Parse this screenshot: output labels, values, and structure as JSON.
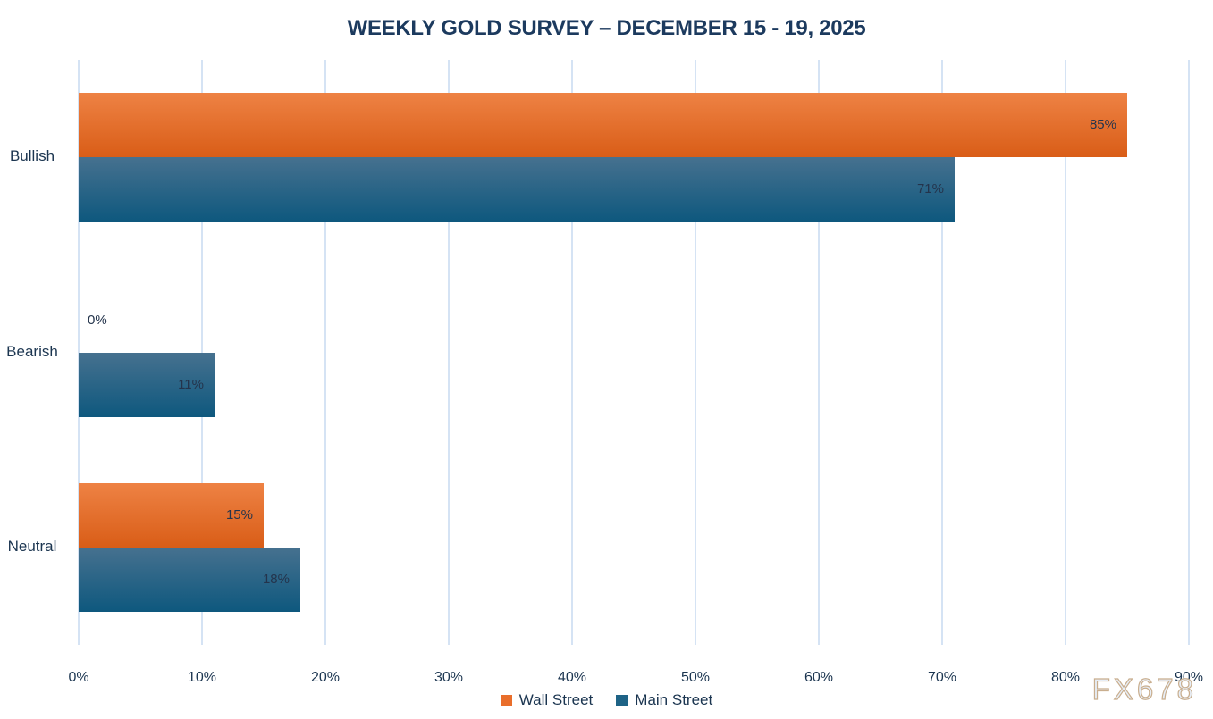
{
  "watermark": "FX678",
  "chart_data": {
    "type": "bar",
    "orientation": "horizontal",
    "title": "WEEKLY GOLD SURVEY – DECEMBER 15 - 19, 2025",
    "categories": [
      "Bullish",
      "Bearish",
      "Neutral"
    ],
    "series": [
      {
        "name": "Wall Street",
        "values": [
          85,
          0,
          15
        ],
        "color_top": "#ee8244",
        "color_bottom": "#d95d17",
        "legend_color": "#e96e2b"
      },
      {
        "name": "Main Street",
        "values": [
          71,
          11,
          18
        ],
        "color_top": "#46718f",
        "color_bottom": "#0e587e",
        "legend_color": "#1e6386"
      }
    ],
    "value_suffix": "%",
    "xlabel": "",
    "ylabel": "",
    "xlim": [
      0,
      90
    ],
    "x_ticks": [
      "0%",
      "10%",
      "20%",
      "30%",
      "40%",
      "50%",
      "60%",
      "70%",
      "80%",
      "90%"
    ],
    "grid": true,
    "legend_position": "bottom",
    "colors": {
      "grid": "#d5e3f4",
      "title_text": "#1c3a5e",
      "axis_text": "#1b3550",
      "value_label_text": "#24344c"
    }
  }
}
